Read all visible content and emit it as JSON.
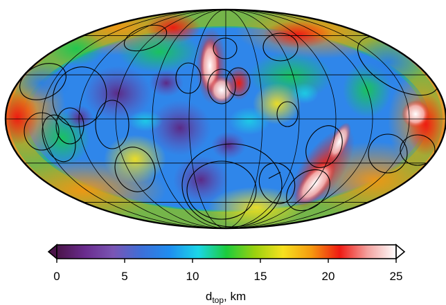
{
  "map": {
    "projection": "Mollweide",
    "graticule_meridians_deg": [
      -180,
      -150,
      -120,
      -90,
      -60,
      -30,
      0,
      30,
      60,
      90,
      120,
      150,
      180
    ],
    "graticule_parallels_deg": [
      -60,
      -30,
      0,
      30,
      60
    ],
    "variable_label": "d",
    "variable_subscript": "top",
    "units_label": ", km"
  },
  "colorbar": {
    "min": 0,
    "max": 25,
    "ticks": [
      "0",
      "5",
      "10",
      "15",
      "20",
      "25"
    ],
    "colors": [
      "#4a1448",
      "#6a2c8e",
      "#7a55b4",
      "#3d6fd8",
      "#1f8ef0",
      "#1bd6e8",
      "#1ccc3c",
      "#9ad10f",
      "#f7e11f",
      "#f59a10",
      "#ef1a13",
      "#f3a3a0",
      "#ffffff"
    ],
    "extends_both": true
  }
}
